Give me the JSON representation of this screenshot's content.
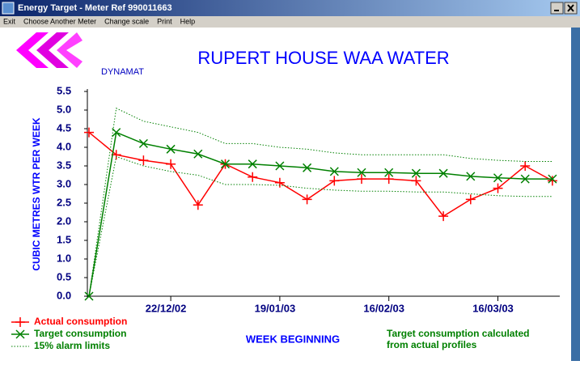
{
  "window": {
    "title": "Energy Target - Meter Ref 990011663"
  },
  "menu": [
    "Exit",
    "Choose Another Meter",
    "Change scale",
    "Print",
    "Help"
  ],
  "logo": "DYNAMAT",
  "chart_data": {
    "type": "line",
    "title": "RUPERT HOUSE WAA WATER",
    "y_label": "CUBIC METRES WTR PER WEEK",
    "x_label": "WEEK BEGINNING",
    "note": [
      "Target consumption calculated",
      "from actual profiles"
    ],
    "categories": [
      null,
      null,
      null,
      "22/12/02",
      null,
      null,
      null,
      "19/01/03",
      null,
      null,
      null,
      "16/02/03",
      null,
      null,
      null,
      "16/03/03",
      null,
      null
    ],
    "series": [
      {
        "name": "Actual consumption",
        "color": "#ff0000",
        "marker": "plus",
        "values": [
          4.4,
          3.8,
          3.65,
          3.55,
          2.45,
          3.55,
          3.2,
          3.05,
          2.6,
          3.1,
          3.15,
          3.15,
          3.1,
          2.15,
          2.6,
          2.9,
          3.5,
          3.1
        ]
      },
      {
        "name": "Target consumption",
        "color": "#008000",
        "marker": "cross",
        "values": [
          0,
          4.4,
          4.1,
          3.95,
          3.82,
          3.55,
          3.55,
          3.5,
          3.45,
          3.35,
          3.32,
          3.32,
          3.3,
          3.3,
          3.22,
          3.18,
          3.15,
          3.15
        ]
      },
      {
        "name": "15% alarm limits",
        "color": "#008000",
        "marker": "dotted",
        "upper": [
          0,
          5.05,
          4.7,
          4.55,
          4.4,
          4.1,
          4.1,
          4.0,
          3.95,
          3.85,
          3.8,
          3.8,
          3.8,
          3.8,
          3.7,
          3.65,
          3.62,
          3.62
        ],
        "lower": [
          0,
          3.75,
          3.5,
          3.35,
          3.25,
          3.0,
          3.0,
          2.98,
          2.9,
          2.85,
          2.82,
          2.82,
          2.8,
          2.8,
          2.75,
          2.7,
          2.68,
          2.68
        ]
      }
    ],
    "ylim": [
      0,
      5.5
    ],
    "yticks": [
      {
        "value": 0,
        "label": "0.0"
      },
      0.5,
      {
        "value": 1,
        "label": "1.0"
      },
      1.5,
      {
        "value": 2,
        "label": "2.0"
      },
      2.5,
      {
        "value": 3,
        "label": "3.0"
      },
      3.5,
      {
        "value": 4,
        "label": "4.0"
      },
      4.5,
      {
        "value": 5,
        "label": "5.0"
      },
      5.5
    ],
    "grid": false
  }
}
